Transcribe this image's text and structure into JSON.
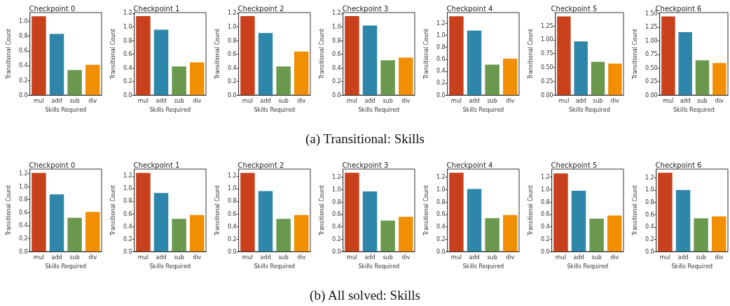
{
  "chart_data": [
    {
      "type": "bar",
      "title": "Checkpoint 0",
      "xlabel": "Skills Required",
      "ylabel": "Transitional Count",
      "categories": [
        "mul",
        "add",
        "sub",
        "div"
      ],
      "values": [
        1.07,
        0.83,
        0.34,
        0.41
      ],
      "colors": [
        "#c9401c",
        "#2e86ab",
        "#6a994e",
        "#f18f01"
      ],
      "ylim": [
        0,
        1.12
      ],
      "yticks": [
        {
          "value": 0,
          "label": "0.0"
        },
        {
          "value": 0.2,
          "label": "0.2"
        },
        {
          "value": 0.4,
          "label": "0.4"
        },
        {
          "value": 0.6,
          "label": "0.6"
        },
        {
          "value": 0.8,
          "label": "0.8"
        },
        {
          "value": 1,
          "label": "1.0"
        }
      ],
      "grid": false
    },
    {
      "type": "bar",
      "title": "Checkpoint 1",
      "xlabel": "Skills Required",
      "ylabel": "Transitional Count",
      "categories": [
        "mul",
        "add",
        "sub",
        "div"
      ],
      "values": [
        1.16,
        0.96,
        0.42,
        0.48
      ],
      "colors": [
        "#c9401c",
        "#2e86ab",
        "#6a994e",
        "#f18f01"
      ],
      "ylim": [
        0,
        1.21
      ],
      "yticks": [
        {
          "value": 0,
          "label": "0.0"
        },
        {
          "value": 0.2,
          "label": "0.2"
        },
        {
          "value": 0.4,
          "label": "0.4"
        },
        {
          "value": 0.6,
          "label": "0.6"
        },
        {
          "value": 0.8,
          "label": "0.8"
        },
        {
          "value": 1,
          "label": "1.0"
        },
        {
          "value": 1.2,
          "label": "1.2"
        }
      ],
      "grid": false
    },
    {
      "type": "bar",
      "title": "Checkpoint 2",
      "xlabel": "Skills Required",
      "ylabel": "Transitional Count",
      "categories": [
        "mul",
        "add",
        "sub",
        "div"
      ],
      "values": [
        1.16,
        0.91,
        0.42,
        0.64
      ],
      "colors": [
        "#c9401c",
        "#2e86ab",
        "#6a994e",
        "#f18f01"
      ],
      "ylim": [
        0,
        1.21
      ],
      "yticks": [
        {
          "value": 0,
          "label": "0.0"
        },
        {
          "value": 0.2,
          "label": "0.2"
        },
        {
          "value": 0.4,
          "label": "0.4"
        },
        {
          "value": 0.6,
          "label": "0.6"
        },
        {
          "value": 0.8,
          "label": "0.8"
        },
        {
          "value": 1,
          "label": "1.0"
        },
        {
          "value": 1.2,
          "label": "1.2"
        }
      ],
      "grid": false
    },
    {
      "type": "bar",
      "title": "Checkpoint 3",
      "xlabel": "Skills Required",
      "ylabel": "Transitional Count",
      "categories": [
        "mul",
        "add",
        "sub",
        "div"
      ],
      "values": [
        1.16,
        1.02,
        0.51,
        0.55
      ],
      "colors": [
        "#c9401c",
        "#2e86ab",
        "#6a994e",
        "#f18f01"
      ],
      "ylim": [
        0,
        1.21
      ],
      "yticks": [
        {
          "value": 0,
          "label": "0.0"
        },
        {
          "value": 0.2,
          "label": "0.2"
        },
        {
          "value": 0.4,
          "label": "0.4"
        },
        {
          "value": 0.6,
          "label": "0.6"
        },
        {
          "value": 0.8,
          "label": "0.8"
        },
        {
          "value": 1,
          "label": "1.0"
        },
        {
          "value": 1.2,
          "label": "1.2"
        }
      ],
      "grid": false
    },
    {
      "type": "bar",
      "title": "Checkpoint 4",
      "xlabel": "Skills Required",
      "ylabel": "Transitional Count",
      "categories": [
        "mul",
        "add",
        "sub",
        "div"
      ],
      "values": [
        1.32,
        1.08,
        0.51,
        0.61
      ],
      "colors": [
        "#c9401c",
        "#2e86ab",
        "#6a994e",
        "#f18f01"
      ],
      "ylim": [
        0,
        1.38
      ],
      "yticks": [
        {
          "value": 0,
          "label": "0.0"
        },
        {
          "value": 0.2,
          "label": "0.2"
        },
        {
          "value": 0.4,
          "label": "0.4"
        },
        {
          "value": 0.6,
          "label": "0.6"
        },
        {
          "value": 0.8,
          "label": "0.8"
        },
        {
          "value": 1,
          "label": "1.0"
        },
        {
          "value": 1.2,
          "label": "1.2"
        }
      ],
      "grid": false
    },
    {
      "type": "bar",
      "title": "Checkpoint 5",
      "xlabel": "Skills Required",
      "ylabel": "Transitional Count",
      "categories": [
        "mul",
        "add",
        "sub",
        "div"
      ],
      "values": [
        1.42,
        0.97,
        0.6,
        0.57
      ],
      "colors": [
        "#c9401c",
        "#2e86ab",
        "#6a994e",
        "#f18f01"
      ],
      "ylim": [
        0,
        1.49
      ],
      "yticks": [
        {
          "value": 0,
          "label": "0.00"
        },
        {
          "value": 0.25,
          "label": "0.25"
        },
        {
          "value": 0.5,
          "label": "0.50"
        },
        {
          "value": 0.75,
          "label": "0.75"
        },
        {
          "value": 1,
          "label": "1.00"
        },
        {
          "value": 1.25,
          "label": "1.25"
        }
      ],
      "grid": false
    },
    {
      "type": "bar",
      "title": "Checkpoint 6",
      "xlabel": "Skills Required",
      "ylabel": "Transitional Count",
      "categories": [
        "mul",
        "add",
        "sub",
        "div"
      ],
      "values": [
        1.45,
        1.16,
        0.64,
        0.59
      ],
      "colors": [
        "#c9401c",
        "#2e86ab",
        "#6a994e",
        "#f18f01"
      ],
      "ylim": [
        0,
        1.52
      ],
      "yticks": [
        {
          "value": 0,
          "label": "0.00"
        },
        {
          "value": 0.25,
          "label": "0.25"
        },
        {
          "value": 0.5,
          "label": "0.50"
        },
        {
          "value": 0.75,
          "label": "0.75"
        },
        {
          "value": 1,
          "label": "1.00"
        },
        {
          "value": 1.25,
          "label": "1.25"
        },
        {
          "value": 1.5,
          "label": "1.50"
        }
      ],
      "grid": false,
      "annotations": [
        "(a) Transitional: Skills"
      ]
    },
    {
      "type": "bar",
      "title": "Checkpoint 0",
      "xlabel": "Skills Required",
      "ylabel": "Transitional Count",
      "categories": [
        "mul",
        "add",
        "sub",
        "div"
      ],
      "values": [
        1.21,
        0.88,
        0.52,
        0.61
      ],
      "colors": [
        "#c9401c",
        "#2e86ab",
        "#6a994e",
        "#f18f01"
      ],
      "ylim": [
        0,
        1.27
      ],
      "yticks": [
        {
          "value": 0,
          "label": "0.0"
        },
        {
          "value": 0.2,
          "label": "0.2"
        },
        {
          "value": 0.4,
          "label": "0.4"
        },
        {
          "value": 0.6,
          "label": "0.6"
        },
        {
          "value": 0.8,
          "label": "0.8"
        },
        {
          "value": 1,
          "label": "1.0"
        },
        {
          "value": 1.2,
          "label": "1.2"
        }
      ],
      "grid": false
    },
    {
      "type": "bar",
      "title": "Checkpoint 1",
      "xlabel": "Skills Required",
      "ylabel": "Transitional Count",
      "categories": [
        "mul",
        "add",
        "sub",
        "div"
      ],
      "values": [
        1.25,
        0.93,
        0.52,
        0.58
      ],
      "colors": [
        "#c9401c",
        "#2e86ab",
        "#6a994e",
        "#f18f01"
      ],
      "ylim": [
        0,
        1.31
      ],
      "yticks": [
        {
          "value": 0,
          "label": "0.0"
        },
        {
          "value": 0.2,
          "label": "0.2"
        },
        {
          "value": 0.4,
          "label": "0.4"
        },
        {
          "value": 0.6,
          "label": "0.6"
        },
        {
          "value": 0.8,
          "label": "0.8"
        },
        {
          "value": 1,
          "label": "1.0"
        },
        {
          "value": 1.2,
          "label": "1.2"
        }
      ],
      "grid": false
    },
    {
      "type": "bar",
      "title": "Checkpoint 2",
      "xlabel": "Skills Required",
      "ylabel": "Transitional Count",
      "categories": [
        "mul",
        "add",
        "sub",
        "div"
      ],
      "values": [
        1.25,
        0.96,
        0.52,
        0.58
      ],
      "colors": [
        "#c9401c",
        "#2e86ab",
        "#6a994e",
        "#f18f01"
      ],
      "ylim": [
        0,
        1.31
      ],
      "yticks": [
        {
          "value": 0,
          "label": "0.0"
        },
        {
          "value": 0.2,
          "label": "0.2"
        },
        {
          "value": 0.4,
          "label": "0.4"
        },
        {
          "value": 0.6,
          "label": "0.6"
        },
        {
          "value": 0.8,
          "label": "0.8"
        },
        {
          "value": 1,
          "label": "1.0"
        },
        {
          "value": 1.2,
          "label": "1.2"
        }
      ],
      "grid": false
    },
    {
      "type": "bar",
      "title": "Checkpoint 3",
      "xlabel": "Skills Required",
      "ylabel": "Transitional Count",
      "categories": [
        "mul",
        "add",
        "sub",
        "div"
      ],
      "values": [
        1.27,
        0.97,
        0.5,
        0.56
      ],
      "colors": [
        "#c9401c",
        "#2e86ab",
        "#6a994e",
        "#f18f01"
      ],
      "ylim": [
        0,
        1.33
      ],
      "yticks": [
        {
          "value": 0,
          "label": "0.0"
        },
        {
          "value": 0.2,
          "label": "0.2"
        },
        {
          "value": 0.4,
          "label": "0.4"
        },
        {
          "value": 0.6,
          "label": "0.6"
        },
        {
          "value": 0.8,
          "label": "0.8"
        },
        {
          "value": 1,
          "label": "1.0"
        },
        {
          "value": 1.2,
          "label": "1.2"
        }
      ],
      "grid": false
    },
    {
      "type": "bar",
      "title": "Checkpoint 4",
      "xlabel": "Skills Required",
      "ylabel": "Transitional Count",
      "categories": [
        "mul",
        "add",
        "sub",
        "div"
      ],
      "values": [
        1.27,
        1.01,
        0.54,
        0.59
      ],
      "colors": [
        "#c9401c",
        "#2e86ab",
        "#6a994e",
        "#f18f01"
      ],
      "ylim": [
        0,
        1.33
      ],
      "yticks": [
        {
          "value": 0,
          "label": "0.0"
        },
        {
          "value": 0.2,
          "label": "0.2"
        },
        {
          "value": 0.4,
          "label": "0.4"
        },
        {
          "value": 0.6,
          "label": "0.6"
        },
        {
          "value": 0.8,
          "label": "0.8"
        },
        {
          "value": 1,
          "label": "1.0"
        },
        {
          "value": 1.2,
          "label": "1.2"
        }
      ],
      "grid": false
    },
    {
      "type": "bar",
      "title": "Checkpoint 5",
      "xlabel": "Skills Required",
      "ylabel": "Transitional Count",
      "categories": [
        "mul",
        "add",
        "sub",
        "div"
      ],
      "values": [
        1.26,
        0.98,
        0.53,
        0.58
      ],
      "colors": [
        "#c9401c",
        "#2e86ab",
        "#6a994e",
        "#f18f01"
      ],
      "ylim": [
        0,
        1.33
      ],
      "yticks": [
        {
          "value": 0,
          "label": "0.0"
        },
        {
          "value": 0.2,
          "label": "0.2"
        },
        {
          "value": 0.4,
          "label": "0.4"
        },
        {
          "value": 0.6,
          "label": "0.6"
        },
        {
          "value": 0.8,
          "label": "0.8"
        },
        {
          "value": 1,
          "label": "1.0"
        },
        {
          "value": 1.2,
          "label": "1.2"
        }
      ],
      "grid": false
    },
    {
      "type": "bar",
      "title": "Checkpoint 6",
      "xlabel": "Skills Required",
      "ylabel": "Transitional Count",
      "categories": [
        "mul",
        "add",
        "sub",
        "div"
      ],
      "values": [
        1.28,
        1.0,
        0.54,
        0.57
      ],
      "colors": [
        "#c9401c",
        "#2e86ab",
        "#6a994e",
        "#f18f01"
      ],
      "ylim": [
        0,
        1.34
      ],
      "yticks": [
        {
          "value": 0,
          "label": "0.0"
        },
        {
          "value": 0.2,
          "label": "0.2"
        },
        {
          "value": 0.4,
          "label": "0.4"
        },
        {
          "value": 0.6,
          "label": "0.6"
        },
        {
          "value": 0.8,
          "label": "0.8"
        },
        {
          "value": 1,
          "label": "1.0"
        },
        {
          "value": 1.2,
          "label": "1.2"
        }
      ],
      "grid": false,
      "annotations": [
        "(b) All solved: Skills"
      ]
    }
  ]
}
